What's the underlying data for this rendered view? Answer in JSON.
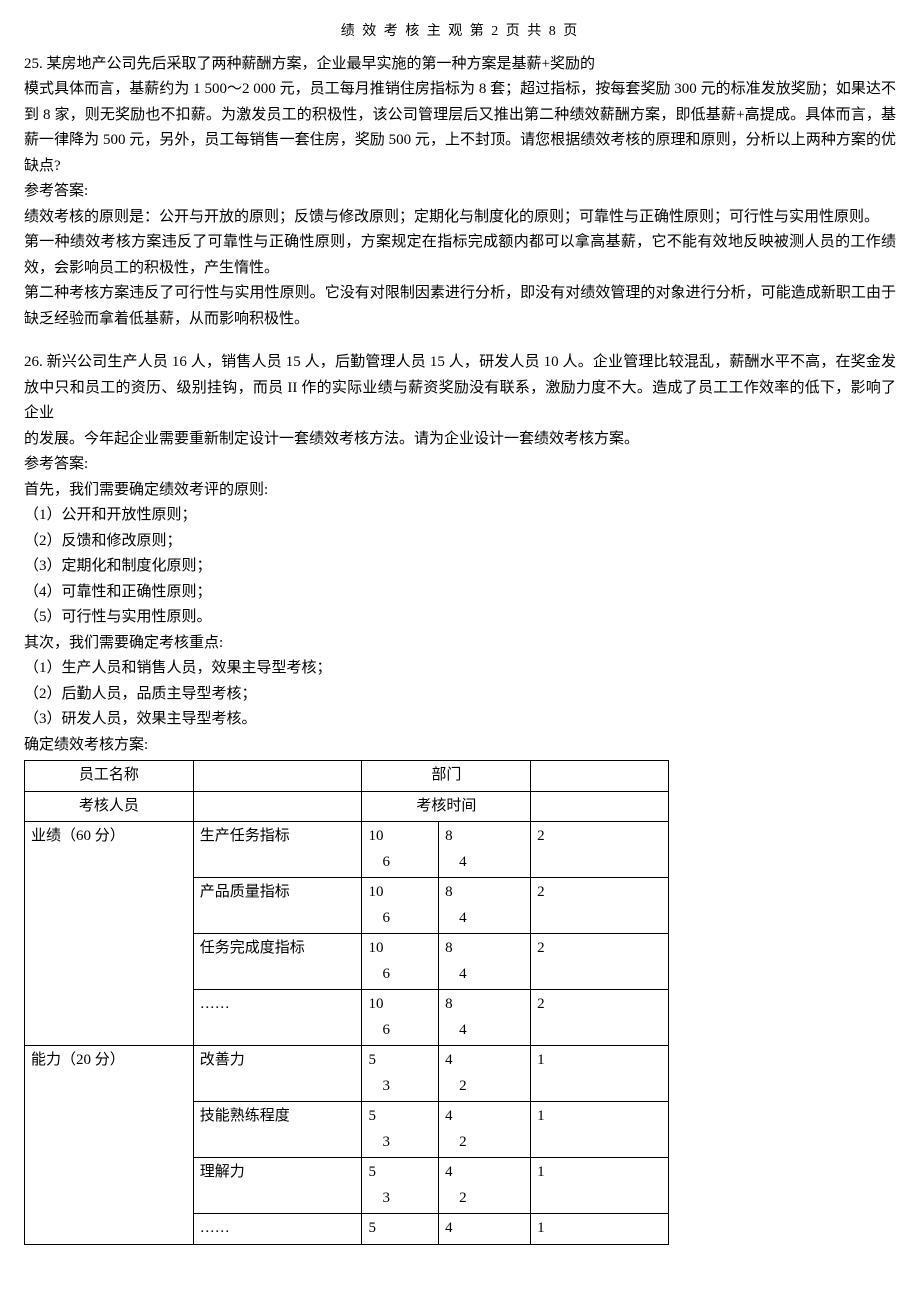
{
  "header": "绩 效 考 核 主 观 第  2  页  共  8  页",
  "q25": {
    "num": "25. ",
    "line1": "某房地产公司先后采取了两种薪酬方案，企业最早实施的第一种方案是基薪+奖励的",
    "line2": "模式具体而言，基薪约为 1 500～2 000 元，员工每月推销住房指标为 8 套；超过指标，按每套奖励 300 元的标准发放奖励；如果达不到 8 家，则无奖励也不扣薪。为激发员工的积极性，该公司管理层后又推出第二种绩效薪酬方案，即低基薪+高提成。具体而言，基薪一律降为 500 元，另外，员工每销售一套住房，奖励 500 元，上不封顶。请您根据绩效考核的原理和原则，分析以上两种方案的优缺点?",
    "ans_label": "参考答案:",
    "ans_p1": "绩效考核的原则是：公开与开放的原则；反馈与修改原则；定期化与制度化的原则；可靠性与正确性原则；可行性与实用性原则。",
    "ans_p2": "第一种绩效考核方案违反了可靠性与正确性原则，方案规定在指标完成额内都可以拿高基薪，它不能有效地反映被测人员的工作绩效，会影响员工的积极性，产生惰性。",
    "ans_p3": "第二种考核方案违反了可行性与实用性原则。它没有对限制因素进行分析，即没有对绩效管理的对象进行分析，可能造成新职工由于缺乏经验而拿着低基薪，从而影响积极性。"
  },
  "q26": {
    "num": "26. ",
    "line1": "新兴公司生产人员 16 人，销售人员 15 人，后勤管理人员 15 人，研发人员 10 人。企业管理比较混乱，薪酬水平不高，在奖金发放中只和员工的资历、级别挂钩，而员 II 作的实际业绩与薪资奖励没有联系，激励力度不大。造成了员工工作效率的低下，影响了企业",
    "line2": "的发展。今年起企业需要重新制定设计一套绩效考核方法。请为企业设计一套绩效考核方案。",
    "ans_label": "参考答案:",
    "p_first": "首先，我们需要确定绩效考评的原则:",
    "principles": [
      "（1）公开和开放性原则；",
      "（2）反馈和修改原则；",
      "（3）定期化和制度化原则；",
      "（4）可靠性和正确性原则；",
      "（5）可行性与实用性原则。"
    ],
    "p_second": "其次，我们需要确定考核重点:",
    "focus": [
      "（1）生产人员和销售人员，效果主导型考核；",
      "（2）后勤人员，品质主导型考核；",
      "（3）研发人员，效果主导型考核。"
    ],
    "p_plan": "确定绩效考核方案:"
  },
  "table": {
    "r1c1": "员工名称",
    "r1c3": "部门",
    "r2c1": "考核人员",
    "r2c3": "考核时间",
    "section1": {
      "label": "业绩（60 分）",
      "rows": [
        {
          "name": "生产任务指标",
          "a": "10",
          "b": "8",
          "c": "6",
          "d": "4",
          "e": "2"
        },
        {
          "name": "产品质量指标",
          "a": "10",
          "b": "8",
          "c": "6",
          "d": "4",
          "e": "2"
        },
        {
          "name": "任务完成度指标",
          "a": "10",
          "b": "8",
          "c": "6",
          "d": "4",
          "e": "2"
        },
        {
          "name": "……",
          "a": "10",
          "b": "8",
          "c": "6",
          "d": "4",
          "e": "2"
        }
      ]
    },
    "section2": {
      "label": "能力（20 分）",
      "rows": [
        {
          "name": "改善力",
          "a": "5",
          "b": "4",
          "c": "3",
          "d": "2",
          "e": "1"
        },
        {
          "name": "技能熟练程度",
          "a": "5",
          "b": "4",
          "c": "3",
          "d": "2",
          "e": "1"
        },
        {
          "name": "理解力",
          "a": "5",
          "b": "4",
          "c": "3",
          "d": "2",
          "e": "1"
        },
        {
          "name": "……",
          "a": "5",
          "b": "4",
          "c": "",
          "d": "",
          "e": "1"
        }
      ]
    }
  }
}
